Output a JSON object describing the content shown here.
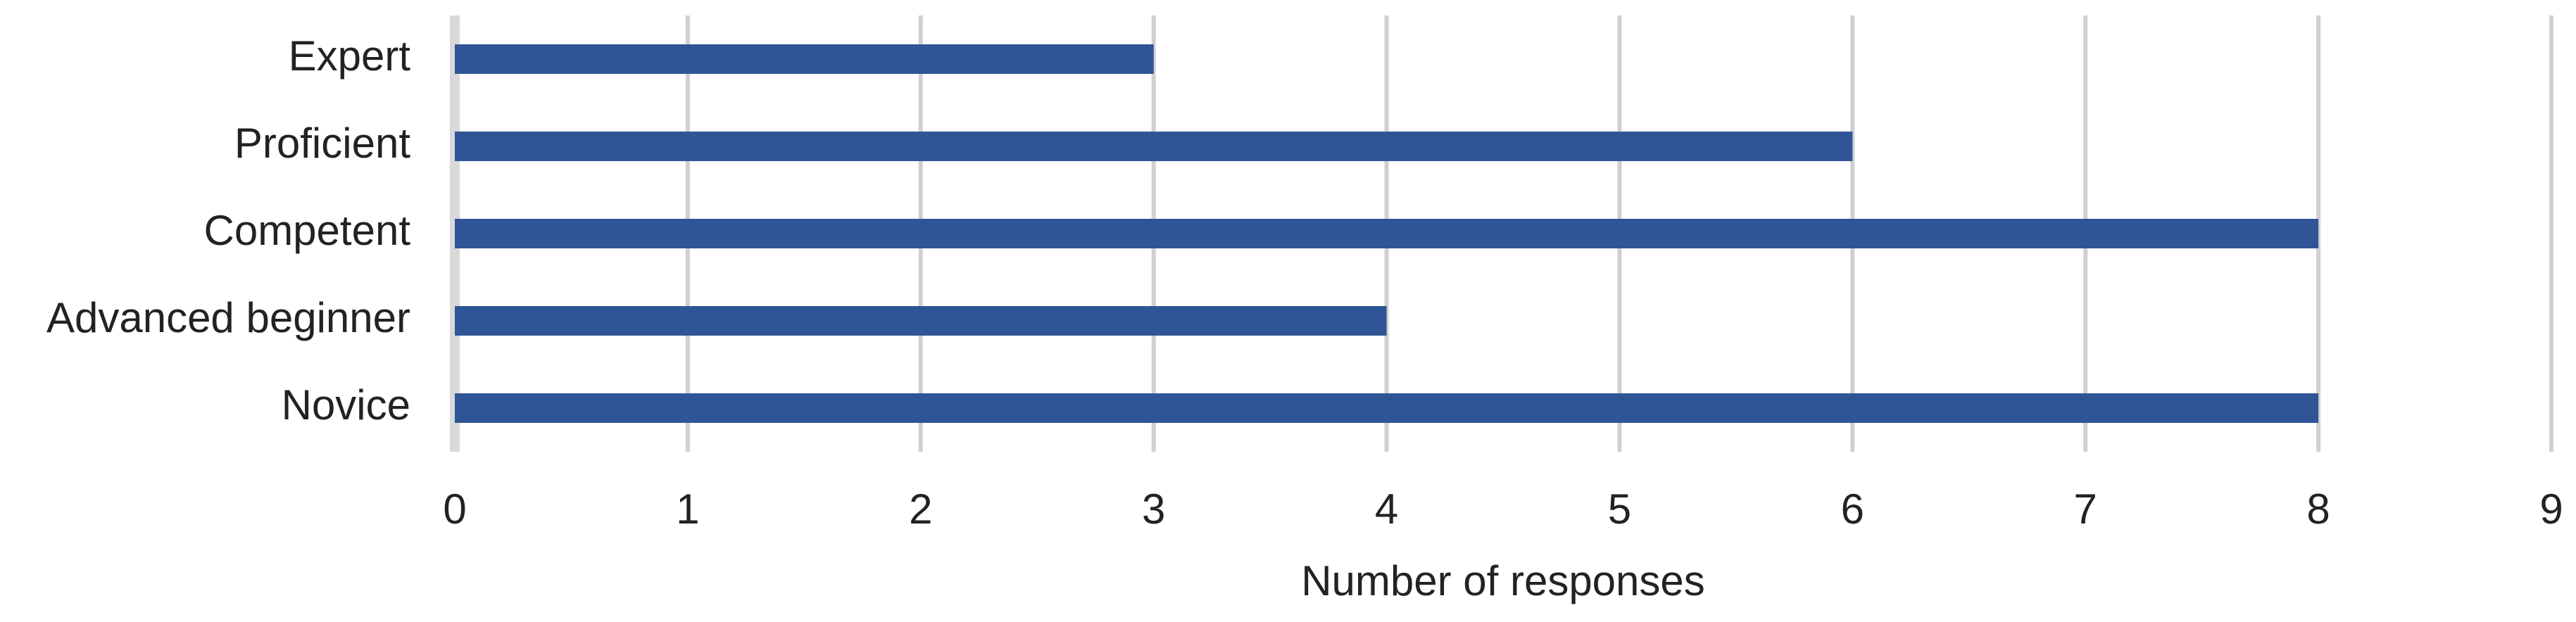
{
  "chart_data": {
    "type": "hbar",
    "categories": [
      "Expert",
      "Proficient",
      "Competent",
      "Advanced beginner",
      "Novice"
    ],
    "values": [
      3,
      6,
      8,
      4,
      8
    ],
    "color": "#2f5597",
    "xlabel": "Number of responses",
    "xlim": [
      0,
      9
    ],
    "xticks": [
      0,
      1,
      2,
      3,
      4,
      5,
      6,
      7,
      8,
      9
    ],
    "grid": true
  }
}
